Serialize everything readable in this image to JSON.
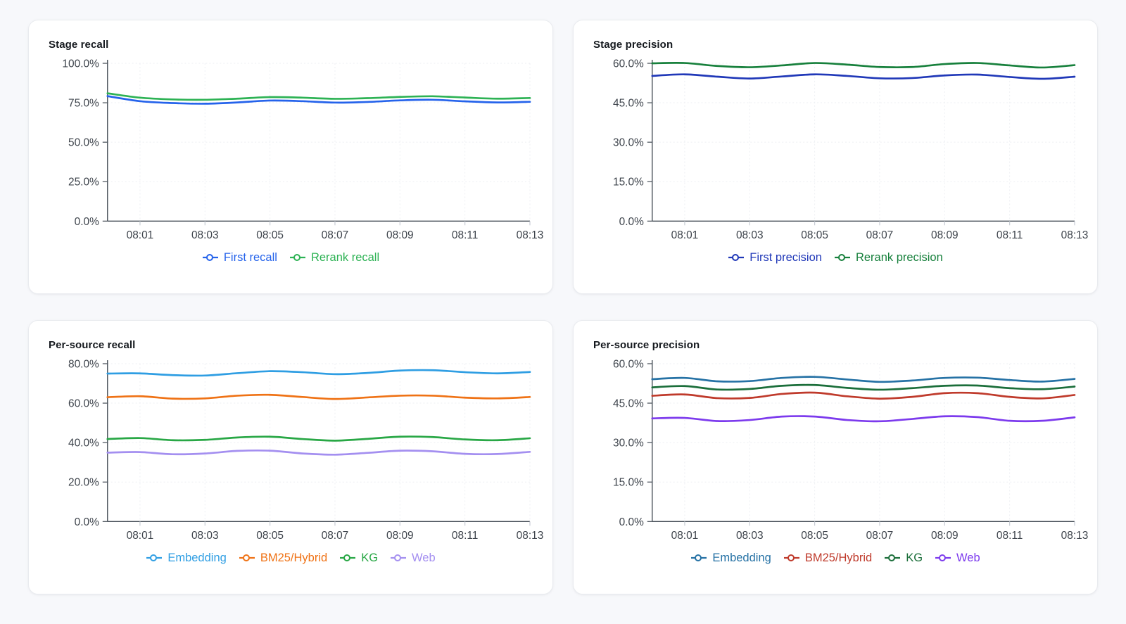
{
  "theme": {
    "page_bg": "#f7f8fb",
    "card_bg": "#ffffff",
    "card_border": "#e9ebef",
    "title_text": "#15191e",
    "tick_text": "#3e444c",
    "axis": "#474f58",
    "x_tick_mark": "#c7ccd4",
    "grid": "#edeff3"
  },
  "chart_data": [
    {
      "type": "line",
      "title": "Stage recall",
      "x_axis": {
        "start": "08:00",
        "end": "08:13",
        "total_minutes": 13,
        "tick_labels": [
          "08:01",
          "08:03",
          "08:05",
          "08:07",
          "08:09",
          "08:11",
          "08:13"
        ],
        "tick_minutes": [
          1,
          3,
          5,
          7,
          9,
          11,
          13
        ]
      },
      "y_axis": {
        "max": 100,
        "tick_values": [
          0,
          25,
          50,
          75,
          100
        ],
        "tick_labels": [
          "0.0%",
          "25.0%",
          "50.0%",
          "75.0%",
          "100.0%"
        ]
      },
      "grid": true,
      "legend_position": "bottom",
      "series": [
        {
          "name": "First recall",
          "color": "#2563eb",
          "values": [
            79.2,
            76.0,
            74.8,
            74.4,
            75.2,
            76.4,
            76.0,
            75.1,
            75.5,
            76.5,
            76.9,
            75.9,
            75.2,
            75.6
          ]
        },
        {
          "name": "Rerank recall",
          "color": "#2db254",
          "values": [
            81.0,
            78.2,
            77.1,
            76.9,
            77.6,
            78.6,
            78.2,
            77.5,
            77.9,
            78.7,
            79.1,
            78.3,
            77.6,
            78.0
          ]
        }
      ]
    },
    {
      "type": "line",
      "title": "Stage precision",
      "x_axis": {
        "start": "08:00",
        "end": "08:13",
        "total_minutes": 13,
        "tick_labels": [
          "08:01",
          "08:03",
          "08:05",
          "08:07",
          "08:09",
          "08:11",
          "08:13"
        ],
        "tick_minutes": [
          1,
          3,
          5,
          7,
          9,
          11,
          13
        ]
      },
      "y_axis": {
        "max": 60,
        "tick_values": [
          0,
          15,
          30,
          45,
          60
        ],
        "tick_labels": [
          "0.0%",
          "15.0%",
          "30.0%",
          "45.0%",
          "60.0%"
        ]
      },
      "grid": true,
      "legend_position": "bottom",
      "series": [
        {
          "name": "First precision",
          "color": "#2038b8",
          "values": [
            55.2,
            55.8,
            54.9,
            54.2,
            55.0,
            55.8,
            55.2,
            54.3,
            54.4,
            55.4,
            55.7,
            54.8,
            54.1,
            54.9
          ]
        },
        {
          "name": "Rerank precision",
          "color": "#17803c",
          "values": [
            60.0,
            60.1,
            59.0,
            58.5,
            59.2,
            60.1,
            59.5,
            58.6,
            58.6,
            59.7,
            60.1,
            59.2,
            58.4,
            59.3
          ]
        }
      ]
    },
    {
      "type": "line",
      "title": "Per-source recall",
      "x_axis": {
        "start": "08:00",
        "end": "08:13",
        "total_minutes": 13,
        "tick_labels": [
          "08:01",
          "08:03",
          "08:05",
          "08:07",
          "08:09",
          "08:11",
          "08:13"
        ],
        "tick_minutes": [
          1,
          3,
          5,
          7,
          9,
          11,
          13
        ]
      },
      "y_axis": {
        "max": 80,
        "tick_values": [
          0,
          20,
          40,
          60,
          80
        ],
        "tick_labels": [
          "0.0%",
          "20.0%",
          "40.0%",
          "60.0%",
          "80.0%"
        ]
      },
      "grid": true,
      "legend_position": "bottom",
      "series": [
        {
          "name": "Embedding",
          "color": "#2f9ee3",
          "values": [
            75.0,
            75.1,
            74.2,
            74.0,
            75.2,
            76.2,
            75.7,
            74.7,
            75.3,
            76.5,
            76.7,
            75.7,
            75.1,
            75.8
          ]
        },
        {
          "name": "BM25/Hybrid",
          "color": "#ef7215",
          "values": [
            63.0,
            63.5,
            62.3,
            62.4,
            63.8,
            64.2,
            63.1,
            62.1,
            62.9,
            63.8,
            63.8,
            62.8,
            62.4,
            63.1
          ]
        },
        {
          "name": "KG",
          "color": "#28a745",
          "values": [
            41.8,
            42.3,
            41.2,
            41.4,
            42.6,
            43.0,
            41.8,
            41.0,
            41.9,
            43.0,
            42.8,
            41.6,
            41.2,
            42.2
          ]
        },
        {
          "name": "Web",
          "color": "#a48ff0",
          "values": [
            34.9,
            35.2,
            34.1,
            34.5,
            35.8,
            35.9,
            34.5,
            33.9,
            34.8,
            35.9,
            35.6,
            34.3,
            34.2,
            35.3
          ]
        }
      ]
    },
    {
      "type": "line",
      "title": "Per-source precision",
      "x_axis": {
        "start": "08:00",
        "end": "08:13",
        "total_minutes": 13,
        "tick_labels": [
          "08:01",
          "08:03",
          "08:05",
          "08:07",
          "08:09",
          "08:11",
          "08:13"
        ],
        "tick_minutes": [
          1,
          3,
          5,
          7,
          9,
          11,
          13
        ]
      },
      "y_axis": {
        "max": 60,
        "tick_values": [
          0,
          15,
          30,
          45,
          60
        ],
        "tick_labels": [
          "0.0%",
          "15.0%",
          "30.0%",
          "45.0%",
          "60.0%"
        ]
      },
      "grid": true,
      "legend_position": "bottom",
      "series": [
        {
          "name": "Embedding",
          "color": "#2672a5",
          "values": [
            54.1,
            54.6,
            53.3,
            53.4,
            54.6,
            55.0,
            54.0,
            53.1,
            53.6,
            54.6,
            54.7,
            53.8,
            53.2,
            54.2
          ]
        },
        {
          "name": "BM25/Hybrid",
          "color": "#bf3a2b",
          "values": [
            47.8,
            48.3,
            46.9,
            47.0,
            48.5,
            49.0,
            47.6,
            46.7,
            47.4,
            48.8,
            48.8,
            47.4,
            46.8,
            48.1
          ]
        },
        {
          "name": "KG",
          "color": "#1b6e3a",
          "values": [
            51.0,
            51.5,
            50.2,
            50.4,
            51.6,
            51.9,
            50.8,
            50.1,
            50.7,
            51.6,
            51.7,
            50.7,
            50.3,
            51.3
          ]
        },
        {
          "name": "Web",
          "color": "#7c3aed",
          "values": [
            39.2,
            39.4,
            38.2,
            38.6,
            39.9,
            39.9,
            38.6,
            38.1,
            39.0,
            40.0,
            39.7,
            38.3,
            38.3,
            39.6
          ]
        }
      ]
    }
  ]
}
